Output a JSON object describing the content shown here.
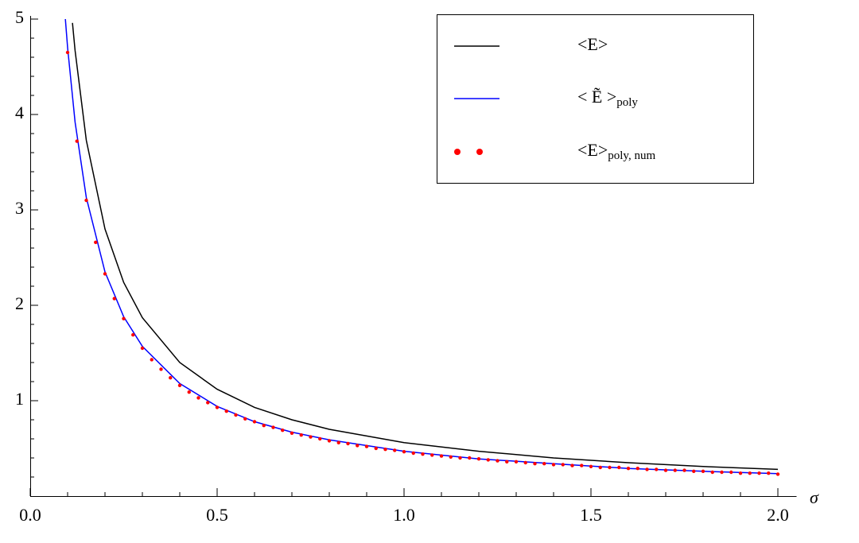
{
  "chart_data": {
    "type": "line",
    "x_label": "σ",
    "xlim": [
      0,
      2.05
    ],
    "ylim": [
      0,
      5
    ],
    "xticks": [
      {
        "value": 0,
        "label": "0.0"
      },
      0.5,
      {
        "value": 1,
        "label": "1.0"
      },
      1.5,
      {
        "value": 2,
        "label": "2.0"
      }
    ],
    "yticks": [
      1,
      2,
      3,
      4,
      5
    ],
    "xminorticks": [
      0.1,
      0.2,
      0.3,
      0.4,
      0.6,
      0.7,
      0.8,
      0.9,
      1.1,
      1.2,
      1.3,
      1.4,
      1.6,
      1.7,
      1.8,
      1.9
    ],
    "yminorticks": [
      0.2,
      0.4,
      0.6,
      0.8,
      1.2,
      1.4,
      1.6,
      1.8,
      2.2,
      2.4,
      2.6,
      2.8,
      3.2,
      3.4,
      3.6,
      3.8,
      4.2,
      4.4,
      4.6,
      4.8
    ],
    "legend": "upper right",
    "series": [
      {
        "name": "<E>",
        "color": "#000000",
        "style": "line",
        "x": [
          0.113,
          0.12,
          0.15,
          0.2,
          0.25,
          0.3,
          0.4,
          0.5,
          0.6,
          0.7,
          0.8,
          1.0,
          1.2,
          1.4,
          1.6,
          1.8,
          2.0
        ],
        "values": [
          4.96,
          4.67,
          3.73,
          2.8,
          2.24,
          1.87,
          1.4,
          1.12,
          0.93,
          0.8,
          0.7,
          0.56,
          0.47,
          0.4,
          0.35,
          0.31,
          0.28
        ]
      },
      {
        "name": "< Ẽ >",
        "name_subscript": "poly",
        "color": "#0000ff",
        "style": "line",
        "x": [
          0.094,
          0.1,
          0.12,
          0.15,
          0.2,
          0.25,
          0.3,
          0.4,
          0.5,
          0.6,
          0.7,
          0.8,
          1.0,
          1.2,
          1.4,
          1.6,
          1.8,
          2.0
        ],
        "values": [
          5.0,
          4.7,
          3.92,
          3.13,
          2.35,
          1.88,
          1.57,
          1.18,
          0.94,
          0.78,
          0.67,
          0.59,
          0.47,
          0.39,
          0.34,
          0.29,
          0.26,
          0.235
        ]
      },
      {
        "name": "<E>",
        "name_subscript": "poly, num",
        "color": "#ff0000",
        "style": "points",
        "x": [
          0.1,
          0.125,
          0.15,
          0.175,
          0.2,
          0.225,
          0.25,
          0.275,
          0.3,
          0.325,
          0.35,
          0.375,
          0.4,
          0.425,
          0.45,
          0.475,
          0.5,
          0.525,
          0.55,
          0.575,
          0.6,
          0.625,
          0.65,
          0.675,
          0.7,
          0.725,
          0.75,
          0.775,
          0.8,
          0.825,
          0.85,
          0.875,
          0.9,
          0.925,
          0.95,
          0.975,
          1.0,
          1.025,
          1.05,
          1.075,
          1.1,
          1.125,
          1.15,
          1.175,
          1.2,
          1.225,
          1.25,
          1.275,
          1.3,
          1.325,
          1.35,
          1.375,
          1.4,
          1.425,
          1.45,
          1.475,
          1.5,
          1.525,
          1.55,
          1.575,
          1.6,
          1.625,
          1.65,
          1.675,
          1.7,
          1.725,
          1.75,
          1.775,
          1.8,
          1.825,
          1.85,
          1.875,
          1.9,
          1.925,
          1.95,
          1.975,
          2.0
        ],
        "values": [
          4.65,
          3.72,
          3.1,
          2.66,
          2.33,
          2.07,
          1.86,
          1.69,
          1.55,
          1.43,
          1.33,
          1.24,
          1.16,
          1.09,
          1.03,
          0.98,
          0.93,
          0.89,
          0.85,
          0.81,
          0.78,
          0.74,
          0.72,
          0.69,
          0.66,
          0.64,
          0.62,
          0.6,
          0.58,
          0.56,
          0.55,
          0.53,
          0.52,
          0.5,
          0.49,
          0.48,
          0.465,
          0.45,
          0.44,
          0.43,
          0.42,
          0.41,
          0.4,
          0.4,
          0.39,
          0.38,
          0.37,
          0.36,
          0.36,
          0.35,
          0.34,
          0.34,
          0.33,
          0.33,
          0.32,
          0.32,
          0.31,
          0.3,
          0.3,
          0.3,
          0.29,
          0.29,
          0.28,
          0.28,
          0.27,
          0.27,
          0.27,
          0.26,
          0.26,
          0.25,
          0.25,
          0.25,
          0.24,
          0.24,
          0.24,
          0.24,
          0.23
        ]
      }
    ]
  }
}
